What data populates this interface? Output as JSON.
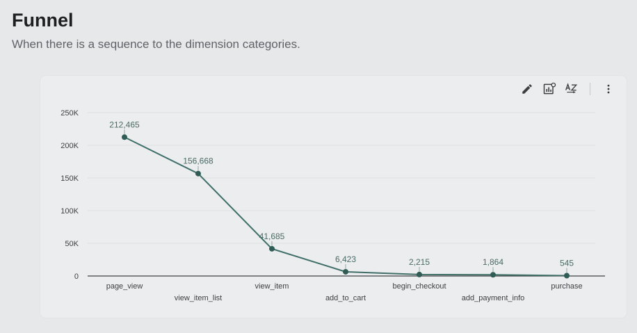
{
  "header": {
    "title": "Funnel",
    "subtitle": "When there is a sequence to the dimension categories."
  },
  "toolbar": {
    "icons": [
      "pencil-icon",
      "chart-settings-icon",
      "sort-az-icon",
      "more-vert-icon"
    ]
  },
  "colors": {
    "series": "#3f6f68",
    "series_dark": "#2f5d56",
    "axis": "#3c4043",
    "grid": "#dcdfe1"
  },
  "chart_data": {
    "type": "line",
    "categories": [
      "page_view",
      "view_item_list",
      "view_item",
      "add_to_cart",
      "begin_checkout",
      "add_payment_info",
      "purchase"
    ],
    "values": [
      212465,
      156668,
      41685,
      6423,
      2215,
      1864,
      545
    ],
    "data_labels": [
      "212,465",
      "156,668",
      "41,685",
      "6,423",
      "2,215",
      "1,864",
      "545"
    ],
    "y_ticks": [
      0,
      50000,
      100000,
      150000,
      200000,
      250000
    ],
    "y_tick_labels": [
      "0",
      "50K",
      "100K",
      "150K",
      "200K",
      "250K"
    ],
    "ylim": [
      0,
      250000
    ],
    "grid": true,
    "legend": "none"
  }
}
